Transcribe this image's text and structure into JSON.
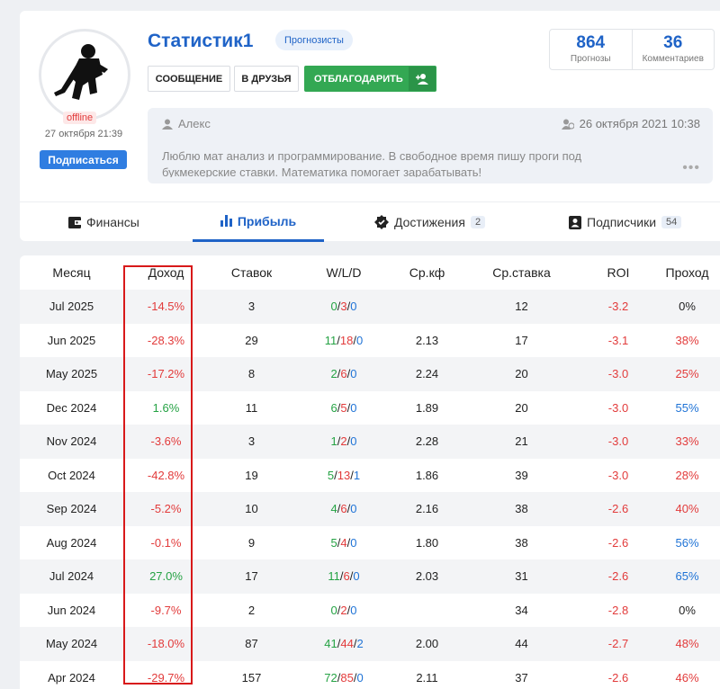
{
  "profile": {
    "username": "Статистик1",
    "role": "Прогнозисты",
    "status": "offline",
    "last_seen": "27 октября 21:39",
    "subscribe_label": "Подписаться",
    "buttons": {
      "message": "СООБЩЕНИЕ",
      "friend": "В ДРУЗЬЯ",
      "thank": "ОТБЛАГОДАРИТЬ"
    },
    "stats": [
      {
        "value": "864",
        "label": "Прогнозы"
      },
      {
        "value": "36",
        "label": "Комментариев"
      }
    ],
    "about": {
      "name": "Алекс",
      "date": "26 октября 2021 10:38",
      "text": "Люблю мат анализ и программирование. В свободное время пишу проги под букмекерские ставки. Математика помогает зарабатывать!"
    }
  },
  "tabs": [
    {
      "label": "Финансы",
      "icon": "wallet-icon"
    },
    {
      "label": "Прибыль",
      "icon": "bar-chart-icon",
      "active": true
    },
    {
      "label": "Достижения",
      "icon": "badge-check-icon",
      "count": "2"
    },
    {
      "label": "Подписчики",
      "icon": "contact-icon",
      "count": "54"
    }
  ],
  "table": {
    "headers": [
      "Месяц",
      "Доход",
      "Ставок",
      "W/L/D",
      "Ср.кф",
      "Ср.ставка",
      "ROI",
      "Проход"
    ],
    "rows": [
      {
        "month": "Jul 2025",
        "income": "-14.5%",
        "bets": "3",
        "w": "0",
        "l": "3",
        "d": "0",
        "kf": "",
        "stake": "12",
        "roi": "-3.2",
        "pass": "0%"
      },
      {
        "month": "Jun 2025",
        "income": "-28.3%",
        "bets": "29",
        "w": "11",
        "l": "18",
        "d": "0",
        "kf": "2.13",
        "stake": "17",
        "roi": "-3.1",
        "pass": "38%"
      },
      {
        "month": "May 2025",
        "income": "-17.2%",
        "bets": "8",
        "w": "2",
        "l": "6",
        "d": "0",
        "kf": "2.24",
        "stake": "20",
        "roi": "-3.0",
        "pass": "25%"
      },
      {
        "month": "Dec 2024",
        "income": "1.6%",
        "bets": "11",
        "w": "6",
        "l": "5",
        "d": "0",
        "kf": "1.89",
        "stake": "20",
        "roi": "-3.0",
        "pass": "55%"
      },
      {
        "month": "Nov 2024",
        "income": "-3.6%",
        "bets": "3",
        "w": "1",
        "l": "2",
        "d": "0",
        "kf": "2.28",
        "stake": "21",
        "roi": "-3.0",
        "pass": "33%"
      },
      {
        "month": "Oct 2024",
        "income": "-42.8%",
        "bets": "19",
        "w": "5",
        "l": "13",
        "d": "1",
        "kf": "1.86",
        "stake": "39",
        "roi": "-3.0",
        "pass": "28%"
      },
      {
        "month": "Sep 2024",
        "income": "-5.2%",
        "bets": "10",
        "w": "4",
        "l": "6",
        "d": "0",
        "kf": "2.16",
        "stake": "38",
        "roi": "-2.6",
        "pass": "40%"
      },
      {
        "month": "Aug 2024",
        "income": "-0.1%",
        "bets": "9",
        "w": "5",
        "l": "4",
        "d": "0",
        "kf": "1.80",
        "stake": "38",
        "roi": "-2.6",
        "pass": "56%"
      },
      {
        "month": "Jul 2024",
        "income": "27.0%",
        "bets": "17",
        "w": "11",
        "l": "6",
        "d": "0",
        "kf": "2.03",
        "stake": "31",
        "roi": "-2.6",
        "pass": "65%"
      },
      {
        "month": "Jun 2024",
        "income": "-9.7%",
        "bets": "2",
        "w": "0",
        "l": "2",
        "d": "0",
        "kf": "",
        "stake": "34",
        "roi": "-2.8",
        "pass": "0%"
      },
      {
        "month": "May 2024",
        "income": "-18.0%",
        "bets": "87",
        "w": "41",
        "l": "44",
        "d": "2",
        "kf": "2.00",
        "stake": "44",
        "roi": "-2.7",
        "pass": "48%"
      },
      {
        "month": "Apr 2024",
        "income": "-29.7%",
        "bets": "157",
        "w": "72",
        "l": "85",
        "d": "0",
        "kf": "2.11",
        "stake": "37",
        "roi": "-2.6",
        "pass": "46%"
      }
    ]
  },
  "colors": {
    "accent": "#1f63c7",
    "negative": "#e23b3b",
    "positive": "#25a244",
    "highlight": "#d8191a"
  }
}
